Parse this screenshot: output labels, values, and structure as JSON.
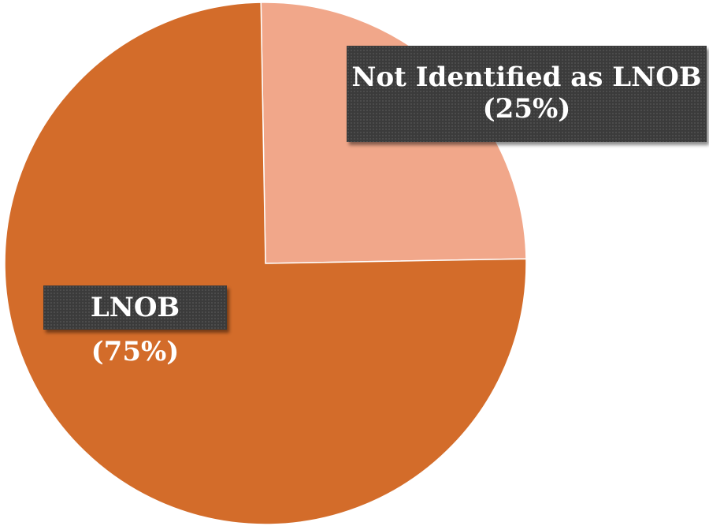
{
  "chart_data": {
    "type": "pie",
    "slices": [
      {
        "label": "LNOB (75%)",
        "value": 75,
        "color": "#d36c2a"
      },
      {
        "label": "Not Identified as LNOB (25%)",
        "value": 25,
        "color": "#f1a78a"
      }
    ],
    "start_angle_deg": 0,
    "direction": "clockwise",
    "legend": "none"
  }
}
